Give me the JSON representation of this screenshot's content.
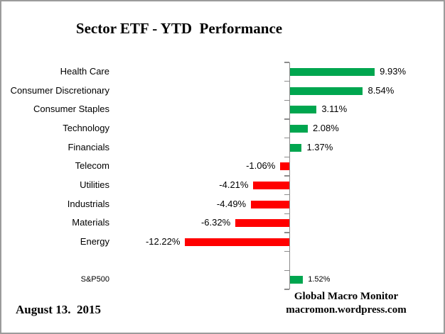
{
  "chart_data": {
    "type": "bar",
    "orientation": "horizontal",
    "title": "Sector ETF - YTD  Performance",
    "categories": [
      "Health Care",
      "Consumer Discretionary",
      "Consumer Staples",
      "Technology",
      "Financials",
      "Telecom",
      "Utilities",
      "Industrials",
      "Materials",
      "Energy",
      "S&P500"
    ],
    "values": [
      9.93,
      8.54,
      3.11,
      2.08,
      1.37,
      -1.06,
      -4.21,
      -4.49,
      -6.32,
      -12.22,
      1.52
    ],
    "value_labels": [
      "9.93%",
      "8.54%",
      "3.11%",
      "2.08%",
      "1.37%",
      "-1.06%",
      "-4.21%",
      "-4.49%",
      "-6.32%",
      "-12.22%",
      "1.52%"
    ],
    "separator_gap_after_category": "Energy",
    "xlabel": "",
    "ylabel": "",
    "xlim": [
      -13.5,
      11
    ],
    "gridlines": false,
    "legend": "none",
    "value_label_position": "outside-end"
  },
  "colors": {
    "positive_bar": "#00a64f",
    "negative_bar": "#ff0000",
    "axis": "#8c8c8c",
    "text": "#000000",
    "border": "#9b9b9b"
  },
  "footer": {
    "date": "August 13.  2015",
    "source_line1": "Global Macro Monitor",
    "source_line2": "macromon.wordpress.com"
  }
}
